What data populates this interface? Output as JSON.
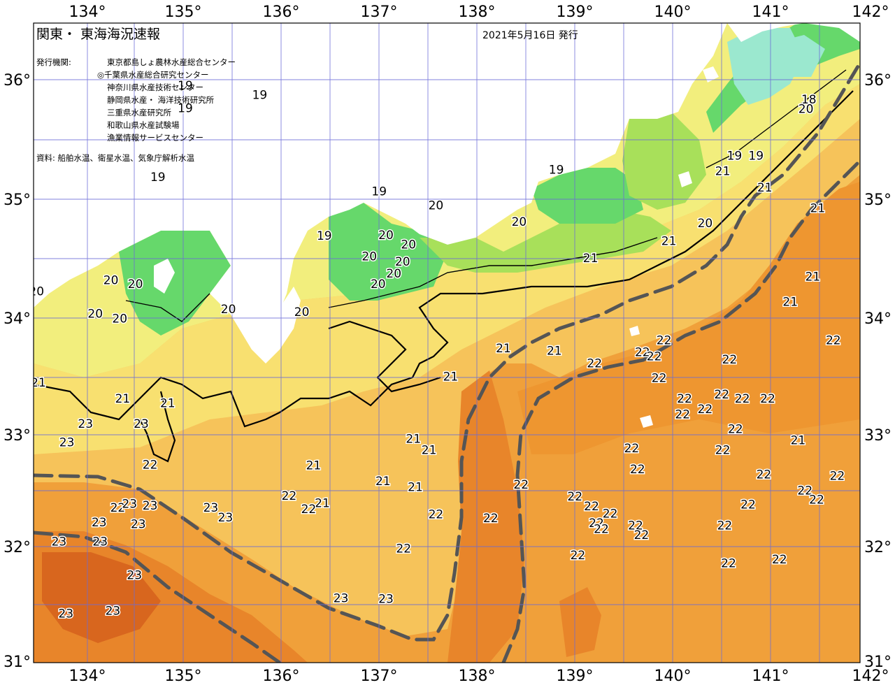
{
  "header": {
    "title": "関東・ 東海海況速報",
    "issue_date": "2021年5月16日 発行"
  },
  "issuers": {
    "label": "発行機関:",
    "list": [
      "東京都島しょ農林水産総合センター",
      "◎千葉県水産総合研究センター",
      "神奈川県水産技術センター",
      "静岡県水産・ 海洋技術研究所",
      "三重県水産研究所",
      "和歌山県水産試験場",
      "漁業情報サービスセンター"
    ]
  },
  "source": "資料: 船舶水温、衛星水温、気象庁解析水温",
  "axes": {
    "lon_labels": [
      "134°",
      "135°",
      "136°",
      "137°",
      "138°",
      "139°",
      "140°",
      "141°",
      "142°"
    ],
    "lat_labels": [
      "36°",
      "35°",
      "34°",
      "33°",
      "32°",
      "31°"
    ]
  },
  "colors": {
    "t18": "#9be8cf",
    "t19": "#66d86b",
    "t19b": "#a8e05a",
    "t20": "#f2ee7d",
    "t20b": "#f8e070",
    "t21": "#f6c35a",
    "t22": "#f0a03a",
    "t23": "#e8852a",
    "t23b": "#d8661e",
    "land": "#ffffff",
    "grid": "#6b6bd6",
    "current_axis": "#555555"
  },
  "temperature_labels": [
    {
      "t": "19",
      "lon": 135.0,
      "lat": 35.87
    },
    {
      "t": "19",
      "lon": 135.0,
      "lat": 35.56
    },
    {
      "t": "19",
      "lon": 135.76,
      "lat": 35.74
    },
    {
      "t": "18",
      "lon": 141.37,
      "lat": 35.68
    },
    {
      "t": "19",
      "lon": 142.02,
      "lat": 36.49
    },
    {
      "t": "19",
      "lon": 142.0,
      "lat": 36.05
    },
    {
      "t": "20",
      "lon": 141.34,
      "lat": 35.55
    },
    {
      "t": "21",
      "lon": 142.1,
      "lat": 36.06
    },
    {
      "t": "21",
      "lon": 142.12,
      "lat": 35.74
    },
    {
      "t": "21",
      "lon": 142.11,
      "lat": 35.38
    },
    {
      "t": "19",
      "lon": 134.72,
      "lat": 34.63
    },
    {
      "t": "19",
      "lon": 136.98,
      "lat": 34.44
    },
    {
      "t": "19",
      "lon": 138.79,
      "lat": 34.73
    },
    {
      "t": "19",
      "lon": 140.61,
      "lat": 34.92
    },
    {
      "t": "19",
      "lon": 140.83,
      "lat": 34.92
    },
    {
      "t": "20",
      "lon": 137.56,
      "lat": 34.25
    },
    {
      "t": "20",
      "lon": 138.41,
      "lat": 34.03
    },
    {
      "t": "20",
      "lon": 140.31,
      "lat": 34.01
    },
    {
      "t": "19",
      "lon": 136.42,
      "lat": 33.84
    },
    {
      "t": "20",
      "lon": 137.05,
      "lat": 33.85
    },
    {
      "t": "20",
      "lon": 137.28,
      "lat": 33.72
    },
    {
      "t": "20",
      "lon": 136.88,
      "lat": 33.56
    },
    {
      "t": "20",
      "lon": 137.22,
      "lat": 33.49
    },
    {
      "t": "20",
      "lon": 137.13,
      "lat": 33.33
    },
    {
      "t": "20",
      "lon": 136.97,
      "lat": 33.19
    },
    {
      "t": "20",
      "lon": 134.24,
      "lat": 33.24
    },
    {
      "t": "20",
      "lon": 134.49,
      "lat": 33.19
    },
    {
      "t": "20",
      "lon": 133.48,
      "lat": 33.09
    },
    {
      "t": "20",
      "lon": 135.44,
      "lat": 32.85
    },
    {
      "t": "20",
      "lon": 136.19,
      "lat": 32.81
    },
    {
      "t": "20",
      "lon": 134.08,
      "lat": 32.79
    },
    {
      "t": "20",
      "lon": 134.33,
      "lat": 32.72
    },
    {
      "t": "21",
      "lon": 140.49,
      "lat": 34.71
    },
    {
      "t": "21",
      "lon": 140.92,
      "lat": 34.49
    },
    {
      "t": "21",
      "lon": 141.46,
      "lat": 34.21
    },
    {
      "t": "21",
      "lon": 142.13,
      "lat": 34.01
    },
    {
      "t": "21",
      "lon": 141.9,
      "lat": 33.84
    },
    {
      "t": "21",
      "lon": 139.94,
      "lat": 33.77
    },
    {
      "t": "21",
      "lon": 139.14,
      "lat": 33.54
    },
    {
      "t": "21",
      "lon": 141.41,
      "lat": 33.29
    },
    {
      "t": "21",
      "lon": 141.18,
      "lat": 32.95
    },
    {
      "t": "21",
      "lon": 142.19,
      "lat": 32.62
    },
    {
      "t": "21",
      "lon": 138.25,
      "lat": 32.32
    },
    {
      "t": "21",
      "lon": 138.77,
      "lat": 32.29
    },
    {
      "t": "21",
      "lon": 137.71,
      "lat": 31.94
    },
    {
      "t": "21",
      "lon": 133.5,
      "lat": 31.86
    },
    {
      "t": "21",
      "lon": 134.36,
      "lat": 31.64
    },
    {
      "t": "21",
      "lon": 134.82,
      "lat": 31.58
    },
    {
      "t": "21",
      "lon": 137.33,
      "lat": 31.1
    },
    {
      "t": "21",
      "lon": 137.49,
      "lat": 30.95
    },
    {
      "t": "21",
      "lon": 136.31,
      "lat": 30.74
    },
    {
      "t": "21",
      "lon": 137.02,
      "lat": 30.53
    },
    {
      "t": "21",
      "lon": 137.35,
      "lat": 30.45
    },
    {
      "t": "21",
      "lon": 136.4,
      "lat": 30.23
    },
    {
      "t": "21",
      "lon": 141.26,
      "lat": 31.08
    },
    {
      "t": "21",
      "lon": 142.26,
      "lat": 30.36
    },
    {
      "t": "22",
      "lon": 139.89,
      "lat": 32.43
    },
    {
      "t": "22",
      "lon": 141.62,
      "lat": 32.43
    },
    {
      "t": "22",
      "lon": 139.67,
      "lat": 32.27
    },
    {
      "t": "22",
      "lon": 140.56,
      "lat": 32.17
    },
    {
      "t": "22",
      "lon": 139.79,
      "lat": 32.21
    },
    {
      "t": "22",
      "lon": 142.35,
      "lat": 32.22
    },
    {
      "t": "22",
      "lon": 139.18,
      "lat": 32.12
    },
    {
      "t": "22",
      "lon": 139.84,
      "lat": 31.92
    },
    {
      "t": "22",
      "lon": 140.1,
      "lat": 31.64
    },
    {
      "t": "22",
      "lon": 140.48,
      "lat": 31.7
    },
    {
      "t": "22",
      "lon": 140.69,
      "lat": 31.64
    },
    {
      "t": "22",
      "lon": 140.95,
      "lat": 31.64
    },
    {
      "t": "22",
      "lon": 140.08,
      "lat": 31.43
    },
    {
      "t": "22",
      "lon": 140.31,
      "lat": 31.5
    },
    {
      "t": "22",
      "lon": 140.62,
      "lat": 31.23
    },
    {
      "t": "22",
      "lon": 140.49,
      "lat": 30.95
    },
    {
      "t": "22",
      "lon": 139.56,
      "lat": 30.97
    },
    {
      "t": "22",
      "lon": 139.62,
      "lat": 30.69
    },
    {
      "t": "22",
      "lon": 140.91,
      "lat": 30.62
    },
    {
      "t": "22",
      "lon": 141.66,
      "lat": 30.6
    },
    {
      "t": "22",
      "lon": 141.33,
      "lat": 30.4
    },
    {
      "t": "22",
      "lon": 141.45,
      "lat": 30.28
    },
    {
      "t": "22",
      "lon": 140.75,
      "lat": 30.21
    },
    {
      "t": "22",
      "lon": 138.98,
      "lat": 30.32
    },
    {
      "t": "22",
      "lon": 139.15,
      "lat": 30.19
    },
    {
      "t": "22",
      "lon": 139.34,
      "lat": 30.09
    },
    {
      "t": "22",
      "lon": 139.2,
      "lat": 29.96
    },
    {
      "t": "22",
      "lon": 139.6,
      "lat": 29.93
    },
    {
      "t": "22",
      "lon": 138.43,
      "lat": 30.48
    },
    {
      "t": "22",
      "lon": 140.51,
      "lat": 29.93
    },
    {
      "t": "22",
      "lon": 141.97,
      "lat": 29.83
    },
    {
      "t": "22",
      "lon": 139.25,
      "lat": 29.88
    },
    {
      "t": "22",
      "lon": 139.66,
      "lat": 29.8
    },
    {
      "t": "22",
      "lon": 136.06,
      "lat": 30.33
    },
    {
      "t": "22",
      "lon": 134.64,
      "lat": 30.75
    },
    {
      "t": "22",
      "lon": 136.26,
      "lat": 30.15
    },
    {
      "t": "22",
      "lon": 137.56,
      "lat": 30.08
    },
    {
      "t": "22",
      "lon": 138.12,
      "lat": 30.03
    },
    {
      "t": "22",
      "lon": 137.23,
      "lat": 29.62
    },
    {
      "t": "22",
      "lon": 139.01,
      "lat": 29.53
    },
    {
      "t": "22",
      "lon": 140.55,
      "lat": 29.42
    },
    {
      "t": "22",
      "lon": 141.07,
      "lat": 29.47
    },
    {
      "t": "22",
      "lon": 134.31,
      "lat": 30.17
    },
    {
      "t": "22",
      "lon": 142.05,
      "lat": 30.11
    },
    {
      "t": "23",
      "lon": 133.98,
      "lat": 31.3
    },
    {
      "t": "23",
      "lon": 134.55,
      "lat": 31.3
    },
    {
      "t": "23",
      "lon": 133.79,
      "lat": 31.05
    },
    {
      "t": "23",
      "lon": 134.43,
      "lat": 30.22
    },
    {
      "t": "23",
      "lon": 134.64,
      "lat": 30.2
    },
    {
      "t": "23",
      "lon": 135.26,
      "lat": 30.17
    },
    {
      "t": "23",
      "lon": 135.41,
      "lat": 30.04
    },
    {
      "t": "23",
      "lon": 134.12,
      "lat": 29.97
    },
    {
      "t": "23",
      "lon": 134.52,
      "lat": 29.95
    },
    {
      "t": "23",
      "lon": 133.71,
      "lat": 29.71
    },
    {
      "t": "23",
      "lon": 134.48,
      "lat": 29.26
    },
    {
      "t": "23",
      "lon": 134.26,
      "lat": 28.78
    },
    {
      "t": "23",
      "lon": 133.78,
      "lat": 28.74
    },
    {
      "t": "23",
      "lon": 136.59,
      "lat": 28.95
    },
    {
      "t": "23",
      "lon": 137.05,
      "lat": 28.94
    },
    {
      "t": "23",
      "lon": 134.13,
      "lat": 29.71
    }
  ]
}
